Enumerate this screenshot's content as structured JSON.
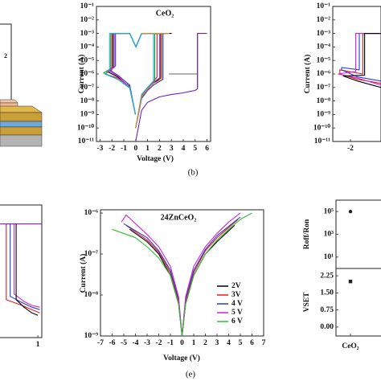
{
  "schematic_label": "2",
  "chart_data": [
    {
      "type": "line",
      "title": "CeO₂",
      "xlabel": "Voltage (V)",
      "ylabel": "Current (A)",
      "caption": "(b)",
      "log_y": true,
      "xlim": [
        -3.3,
        6.3
      ],
      "xticks": [
        -3,
        -2,
        -1,
        0,
        1,
        2,
        3,
        4,
        5,
        6
      ],
      "ylim": [
        1e-11,
        0.1
      ],
      "yticks": [
        {
          "value": 1e-11,
          "label": "10⁻¹¹"
        },
        {
          "value": 1e-10,
          "label": "10⁻¹⁰"
        },
        {
          "value": 1e-09,
          "label": "10⁻⁹"
        },
        {
          "value": 1e-08,
          "label": "10⁻⁸"
        },
        {
          "value": 1e-07,
          "label": "10⁻⁷"
        },
        {
          "value": 1e-06,
          "label": "10⁻⁶"
        },
        {
          "value": 1e-05,
          "label": "10⁻⁵"
        },
        {
          "value": 0.0001,
          "label": "10⁻⁴"
        },
        {
          "value": 0.001,
          "label": "10⁻³"
        },
        {
          "value": 0.01,
          "label": "10⁻²"
        },
        {
          "value": 0.1,
          "label": "10⁻¹"
        }
      ],
      "series": [
        {
          "color": "#000000",
          "x": [
            0,
            0.5,
            1,
            1.5,
            2.1,
            2.1,
            3,
            0.5,
            0.02,
            -0.5,
            -1.9,
            -1.9,
            -2.4,
            -1.5,
            -0.5,
            -0.02
          ],
          "values": [
            1e-10,
            2e-08,
            8e-08,
            2e-07,
            5e-07,
            0.001,
            0.001,
            0.001,
            0.0001,
            0.001,
            0.001,
            3e-06,
            1.5e-06,
            6e-07,
            1e-07,
            1e-09
          ]
        },
        {
          "color": "#e41a1c",
          "x": [
            0,
            0.5,
            1,
            1.5,
            1.8,
            1.8,
            2.4,
            0.5,
            0.02,
            -0.5,
            -2.0,
            -2.0,
            -2.6,
            -1.5,
            -0.5,
            -0.02
          ],
          "values": [
            1e-10,
            3e-08,
            1e-07,
            3e-07,
            6e-07,
            0.001,
            0.001,
            0.001,
            0.0001,
            0.001,
            0.001,
            2e-06,
            1e-06,
            5e-07,
            1.2e-07,
            1e-09
          ]
        },
        {
          "color": "#1f3fd6",
          "x": [
            0,
            0.5,
            1,
            1.5,
            2.3,
            2.3,
            2.6,
            0.5,
            0.02,
            -0.5,
            -1.7,
            -1.7,
            -2.2,
            -1.5,
            -0.5,
            -0.02
          ],
          "values": [
            1e-10,
            1.5e-08,
            6e-08,
            1.5e-07,
            4e-07,
            0.001,
            0.001,
            0.001,
            0.0001,
            0.001,
            0.001,
            4e-06,
            2e-06,
            8e-07,
            1.5e-07,
            1e-09
          ]
        },
        {
          "color": "#1a9e3a",
          "x": [
            0,
            0.5,
            1,
            1.6,
            1.6,
            2.2,
            0.5,
            0.02,
            -0.5,
            -2.1,
            -2.1,
            -2.7,
            -1.5,
            -0.5,
            -0.02
          ],
          "values": [
            1e-10,
            2.5e-08,
            9e-08,
            3e-07,
            0.001,
            0.001,
            0.001,
            0.0001,
            0.001,
            0.001,
            2.5e-06,
            1.2e-06,
            4e-07,
            9e-08,
            1e-09
          ]
        },
        {
          "color": "#d61fd6",
          "x": [
            0,
            0.5,
            1,
            1.5,
            2.0,
            2.0,
            2.5,
            0.5,
            0.02,
            -0.5,
            -1.8,
            -1.8,
            -2.3,
            -1.5,
            -0.5,
            -0.02
          ],
          "values": [
            1e-10,
            2e-08,
            7e-08,
            2.5e-07,
            5e-07,
            0.001,
            0.001,
            0.001,
            0.0001,
            0.001,
            0.001,
            3e-06,
            1.8e-06,
            7e-07,
            1e-07,
            1e-09
          ]
        },
        {
          "color": "#14b8d6",
          "x": [
            0,
            0.5,
            1,
            1.5,
            1.5,
            2.3,
            0.5,
            0.02,
            -0.5,
            -2.2,
            -2.2,
            -2.6,
            -1.5,
            -0.5,
            -0.02
          ],
          "values": [
            1e-10,
            3e-08,
            1e-07,
            3e-07,
            0.001,
            0.001,
            0.001,
            0.0001,
            0.001,
            0.001,
            2e-06,
            1e-06,
            4e-07,
            1e-07,
            1e-09
          ]
        },
        {
          "color": "#e08a1a",
          "x": [
            0,
            0.5,
            1,
            1.5,
            2.2,
            2.2,
            2.8,
            0.5
          ],
          "values": [
            1e-10,
            2e-08,
            8e-08,
            2e-07,
            4e-07,
            0.001,
            0.001,
            0.001
          ]
        },
        {
          "color": "#666666",
          "x": [
            2.8,
            5.2,
            5.2,
            5.2
          ],
          "values": [
            1e-06,
            1e-06,
            1e-07,
            0.001
          ]
        },
        {
          "color": "#6a22c8",
          "x": [
            0,
            0.5,
            1,
            2,
            3,
            4,
            4.5,
            5,
            5.2,
            5.2,
            6
          ],
          "values": [
            1e-11,
            2e-09,
            8e-09,
            2e-08,
            3e-08,
            4e-08,
            5e-08,
            6e-08,
            8e-08,
            0.001,
            0.001
          ]
        }
      ]
    },
    {
      "type": "line",
      "ylabel": "Current (A)",
      "log_y": true,
      "xlim": [
        -3,
        -0.27
      ],
      "xticks": [
        -2
      ],
      "ylim": [
        1e-11,
        0.1
      ],
      "yticks": [
        {
          "value": 1e-11,
          "label": "10⁻¹¹"
        },
        {
          "value": 1e-10,
          "label": "10⁻¹⁰"
        },
        {
          "value": 1e-09,
          "label": "10⁻⁹"
        },
        {
          "value": 1e-08,
          "label": "10⁻⁸"
        },
        {
          "value": 1e-07,
          "label": "10⁻⁷"
        },
        {
          "value": 1e-06,
          "label": "10⁻⁶"
        },
        {
          "value": 1e-05,
          "label": "10⁻⁵"
        },
        {
          "value": 0.0001,
          "label": "10⁻⁴"
        },
        {
          "value": 0.001,
          "label": "10⁻³"
        },
        {
          "value": 0.01,
          "label": "10⁻²"
        },
        {
          "value": 0.1,
          "label": "10⁻¹"
        }
      ],
      "series": [
        {
          "color": "#e41a1c",
          "x": [
            -0.27,
            -1.3,
            -1.3,
            -2.6,
            -2.6,
            -1.6,
            -0.27
          ],
          "values": [
            0.001,
            0.001,
            1e-06,
            2e-06,
            1e-06,
            4e-07,
            2e-07
          ]
        },
        {
          "color": "#1f3fd6",
          "x": [
            -0.27,
            -1.5,
            -1.5,
            -2.5,
            -2.5,
            -1.6,
            -0.27
          ],
          "values": [
            0.001,
            0.001,
            2e-06,
            3e-06,
            2e-06,
            6e-07,
            3e-07
          ]
        },
        {
          "color": "#d61fd6",
          "x": [
            -0.27,
            -1.7,
            -1.7,
            -2.7,
            -1.6,
            -0.27
          ],
          "values": [
            0.001,
            0.001,
            1.5e-06,
            1e-06,
            5e-07,
            1.5e-07
          ]
        },
        {
          "color": "#000000",
          "x": [
            -0.27,
            -1.2,
            -1.2,
            -2.4,
            -1.6,
            -0.27
          ],
          "values": [
            0.001,
            0.001,
            8e-07,
            7e-07,
            3e-07,
            1e-07
          ]
        }
      ]
    },
    {
      "type": "line",
      "log_y": true,
      "xlim": [
        -1.0,
        1.2
      ],
      "xticks": [
        1
      ],
      "ylim": [
        1e-09,
        0.01
      ],
      "series": [
        {
          "color": "#7a22c8",
          "x": [
            -1.0,
            1.2
          ],
          "values": [
            0.001,
            0.001
          ]
        },
        {
          "color": "#e41a1c",
          "x": [
            -0.6,
            -0.6,
            0.2,
            0.7,
            1.1
          ],
          "values": [
            0.001,
            1e-07,
            5e-08,
            3e-08,
            2e-08
          ]
        },
        {
          "color": "#1f3fd6",
          "x": [
            -0.4,
            -0.4,
            0.2,
            0.7,
            1.1
          ],
          "values": [
            0.001,
            1.5e-07,
            7e-08,
            4e-08,
            3e-08
          ]
        },
        {
          "color": "#d61fd6",
          "x": [
            -0.2,
            -0.2,
            0.3,
            0.7,
            1.1
          ],
          "values": [
            0.001,
            2e-07,
            8e-08,
            5e-08,
            4e-08
          ]
        },
        {
          "color": "#000000",
          "x": [
            -0.1,
            -0.1,
            0.3,
            0.7,
            1.0
          ],
          "values": [
            0.001,
            1e-07,
            4e-08,
            2e-08,
            1.5e-08
          ]
        }
      ]
    },
    {
      "type": "line",
      "title": "24ZnCeO₂",
      "xlabel": "Voltage (V)",
      "ylabel": "Current (A)",
      "caption": "(e)",
      "log_y": true,
      "xlim": [
        -7,
        7
      ],
      "xticks": [
        -7,
        -6,
        -5,
        -4,
        -3,
        -2,
        -1,
        0,
        1,
        2,
        3,
        4,
        5,
        6,
        7
      ],
      "ylim": [
        1e-09,
        1.2e-06
      ],
      "yticks": [
        {
          "value": 1e-09,
          "label": "10⁻⁹"
        },
        {
          "value": 1e-08,
          "label": "10⁻⁸"
        },
        {
          "value": 1e-07,
          "label": "10⁻⁷"
        },
        {
          "value": 1e-06,
          "label": "10⁻⁶"
        }
      ],
      "legend": "lower right",
      "series": [
        {
          "name": "2V",
          "color": "#000000",
          "x": [
            -4.5,
            -3,
            -2,
            -1,
            -0.3,
            0,
            0.3,
            1,
            2,
            3,
            4.5
          ],
          "values": [
            4e-07,
            2e-07,
            1e-07,
            3e-08,
            6e-09,
            1e-09,
            6e-09,
            3e-08,
            1e-07,
            2e-07,
            5e-07
          ]
        },
        {
          "name": "3V",
          "color": "#e41a1c",
          "x": [
            -4.8,
            -3,
            -2,
            -1,
            -0.3,
            0,
            0.3,
            1,
            2,
            3,
            4.8
          ],
          "values": [
            5e-07,
            2.2e-07,
            1.1e-07,
            3.5e-08,
            7e-09,
            1e-09,
            7e-09,
            3.5e-08,
            1.2e-07,
            2.5e-07,
            7e-07
          ]
        },
        {
          "name": "4 V",
          "color": "#1f3fd6",
          "x": [
            -5,
            -3,
            -2,
            -1,
            -0.3,
            0,
            0.3,
            1,
            2,
            3,
            5
          ],
          "values": [
            5.5e-07,
            2.5e-07,
            1.2e-07,
            4e-08,
            8e-09,
            1e-09,
            8e-09,
            4e-08,
            1.3e-07,
            2.8e-07,
            8e-07
          ]
        },
        {
          "name": "5 V",
          "color": "#d61fd6",
          "x": [
            -5.2,
            -4.8,
            -3,
            -2,
            -1,
            -0.3,
            0,
            0.3,
            1,
            2,
            3,
            4,
            5
          ],
          "values": [
            6e-07,
            9e-07,
            3e-07,
            1.5e-07,
            5e-08,
            9e-09,
            1e-09,
            9e-09,
            5e-08,
            1.5e-07,
            3.2e-07,
            6e-07,
            1e-06
          ]
        },
        {
          "name": "6 V",
          "color": "#2fbf2f",
          "x": [
            -6,
            -4,
            -3,
            -2,
            -1,
            -0.3,
            0,
            0.3,
            1,
            2,
            3,
            4,
            5,
            6
          ],
          "values": [
            4e-07,
            2.5e-07,
            1.5e-07,
            8e-08,
            3e-08,
            6e-09,
            1e-09,
            6e-09,
            3e-08,
            1e-07,
            2.2e-07,
            4e-07,
            7e-07,
            1e-06
          ]
        }
      ]
    },
    {
      "type": "dot",
      "categories": [
        "CeO₂"
      ],
      "panels": [
        {
          "ylabel": "Roff/Ron",
          "log_y": true,
          "ylim": [
            1,
            1000000
          ],
          "yticks": [
            {
              "value": 10,
              "label": "10¹"
            },
            {
              "value": 1000,
              "label": "10³"
            },
            {
              "value": 100000,
              "label": "10⁵"
            }
          ],
          "values": [
            100000
          ]
        },
        {
          "ylabel": "VSET",
          "ylim": [
            -0.39,
            2.57
          ],
          "yticks": [
            {
              "value": 0,
              "label": "0.00"
            },
            0.75,
            {
              "value": 1.5,
              "label": "1.50"
            },
            2.25
          ],
          "values": [
            2.0
          ]
        }
      ]
    }
  ]
}
